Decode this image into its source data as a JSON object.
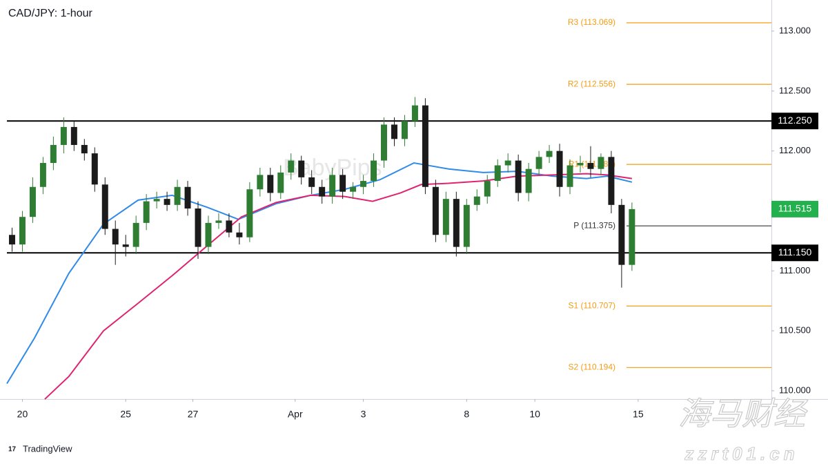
{
  "chart_data": {
    "type": "candlestick",
    "title": "CAD/JPY: 1-hour",
    "watermark": "BabyPips",
    "logo": "TradingView",
    "overlay": {
      "title": "海马财经",
      "url": "zzrt01.cn"
    },
    "up_color": "#2e7d32",
    "down_color": "#1b1b1b",
    "open": [
      111.3,
      111.22,
      111.45,
      111.7,
      111.9,
      112.05,
      112.2,
      112.05,
      111.98,
      111.72,
      111.35,
      111.22,
      111.2,
      111.4,
      111.58,
      111.6,
      111.55,
      111.7,
      111.52,
      111.2,
      111.4,
      111.42,
      111.32,
      111.28,
      111.68,
      111.8,
      111.65,
      111.82,
      111.92,
      111.78,
      111.7,
      111.62,
      111.8,
      111.66,
      111.7,
      111.75,
      111.92,
      112.22,
      112.1,
      112.25,
      112.38,
      111.7,
      111.3,
      111.6,
      111.2,
      111.55,
      111.62,
      111.75,
      111.88,
      111.92,
      111.65,
      111.85,
      111.95,
      112.0,
      111.7,
      111.88,
      111.9,
      111.85,
      111.95,
      111.55,
      111.05
    ],
    "high": [
      111.36,
      111.5,
      111.78,
      111.95,
      112.12,
      112.28,
      112.25,
      112.1,
      112.03,
      111.78,
      111.42,
      111.3,
      111.46,
      111.64,
      111.66,
      111.66,
      111.76,
      111.75,
      111.58,
      111.46,
      111.48,
      111.48,
      111.4,
      111.74,
      111.86,
      111.86,
      111.88,
      111.98,
      111.96,
      111.84,
      111.76,
      111.86,
      111.85,
      111.74,
      111.8,
      111.98,
      112.28,
      112.28,
      112.3,
      112.45,
      112.44,
      111.76,
      111.66,
      111.66,
      111.6,
      111.68,
      111.8,
      111.93,
      111.98,
      111.97,
      111.9,
      112.0,
      112.05,
      112.06,
      111.93,
      111.96,
      112.04,
      111.98,
      112.0,
      111.6,
      111.57
    ],
    "low": [
      111.16,
      111.16,
      111.4,
      111.64,
      111.84,
      111.98,
      112.0,
      111.92,
      111.66,
      111.3,
      111.05,
      111.12,
      111.14,
      111.34,
      111.52,
      111.5,
      111.5,
      111.46,
      111.1,
      111.14,
      111.35,
      111.28,
      111.22,
      111.24,
      111.62,
      111.58,
      111.6,
      111.76,
      111.72,
      111.64,
      111.56,
      111.56,
      111.6,
      111.6,
      111.64,
      111.7,
      111.86,
      112.04,
      112.04,
      112.2,
      111.64,
      111.24,
      111.24,
      111.12,
      111.14,
      111.5,
      111.56,
      111.7,
      111.82,
      111.58,
      111.58,
      111.8,
      111.9,
      111.62,
      111.64,
      111.82,
      111.78,
      111.8,
      111.48,
      110.86,
      111.0
    ],
    "close": [
      111.22,
      111.45,
      111.7,
      111.9,
      112.05,
      112.2,
      112.05,
      111.98,
      111.72,
      111.35,
      111.22,
      111.2,
      111.4,
      111.58,
      111.6,
      111.55,
      111.7,
      111.52,
      111.2,
      111.4,
      111.42,
      111.32,
      111.28,
      111.68,
      111.8,
      111.65,
      111.82,
      111.92,
      111.78,
      111.7,
      111.62,
      111.8,
      111.66,
      111.7,
      111.75,
      111.92,
      112.22,
      112.1,
      112.25,
      112.38,
      111.7,
      111.3,
      111.6,
      111.2,
      111.55,
      111.62,
      111.75,
      111.88,
      111.92,
      111.65,
      111.85,
      111.95,
      112.0,
      111.7,
      111.88,
      111.9,
      111.85,
      111.95,
      111.55,
      111.05,
      111.515
    ],
    "series": [
      {
        "color": "#2f8ae8",
        "x": [
          -0.5,
          2.17,
          5.5,
          8.85,
          12.2,
          15.5,
          18.9,
          21.9,
          25.55,
          28.9,
          32.2,
          35.6,
          38.9,
          42.25,
          45.6,
          48.9,
          52.3,
          55.6,
          57.6,
          60.0
        ],
        "values": [
          110.06,
          110.44,
          110.98,
          111.39,
          111.59,
          111.63,
          111.53,
          111.43,
          111.56,
          111.63,
          111.68,
          111.76,
          111.9,
          111.85,
          111.82,
          111.83,
          111.79,
          111.77,
          111.79,
          111.74
        ]
      },
      {
        "color": "#e0236f",
        "x": [
          3.17,
          5.5,
          8.85,
          12.2,
          15.5,
          18.9,
          22.2,
          25.55,
          28.9,
          32.2,
          34.9,
          37.6,
          39.6,
          42.25,
          45.6,
          48.9,
          52.3,
          55.6,
          57.6,
          60.0
        ],
        "values": [
          109.93,
          110.12,
          110.5,
          110.73,
          110.96,
          111.21,
          111.45,
          111.57,
          111.63,
          111.62,
          111.58,
          111.65,
          111.72,
          111.73,
          111.75,
          111.79,
          111.8,
          111.81,
          111.8,
          111.77
        ]
      }
    ],
    "pivots": [
      {
        "label": "R3 (113.069)",
        "value": 113.069,
        "color": "#f39c12"
      },
      {
        "label": "R2 (112.556)",
        "value": 112.556,
        "color": "#f39c12"
      },
      {
        "label": "R1 (111.888)",
        "value": 111.888,
        "color": "#f39c12"
      },
      {
        "label": "P (111.375)",
        "value": 111.375,
        "color": "#333333"
      },
      {
        "label": "S1 (110.707)",
        "value": 110.707,
        "color": "#f39c12"
      },
      {
        "label": "S2 (110.194)",
        "value": 110.194,
        "color": "#f39c12"
      }
    ],
    "levels": [
      {
        "value": 112.25,
        "label": "112.250"
      },
      {
        "value": 111.15,
        "label": "111.150"
      }
    ],
    "last_price": {
      "value": 111.515,
      "label": "111.515",
      "color": "#22b14c"
    },
    "xlim": [
      -0.5,
      73.5
    ],
    "ylim": [
      109.931,
      113.259
    ],
    "yticks": [
      {
        "value": 110,
        "label": "110.000"
      },
      {
        "value": 110.5,
        "label": "110.500"
      },
      {
        "value": 111,
        "label": "111.000"
      },
      {
        "value": 111.5,
        "label": "111.500"
      },
      {
        "value": 112,
        "label": "112.000"
      },
      {
        "value": 112.5,
        "label": "112.500"
      },
      {
        "value": 113,
        "label": "113.000"
      }
    ],
    "xticks": [
      {
        "value": 1,
        "label": "20"
      },
      {
        "value": 11,
        "label": "25"
      },
      {
        "value": 17.5,
        "label": "27"
      },
      {
        "value": 27.4,
        "label": "Apr"
      },
      {
        "value": 34,
        "label": "3"
      },
      {
        "value": 44,
        "label": "8"
      },
      {
        "value": 50.6,
        "label": "10"
      },
      {
        "value": 60.6,
        "label": "15"
      }
    ]
  }
}
